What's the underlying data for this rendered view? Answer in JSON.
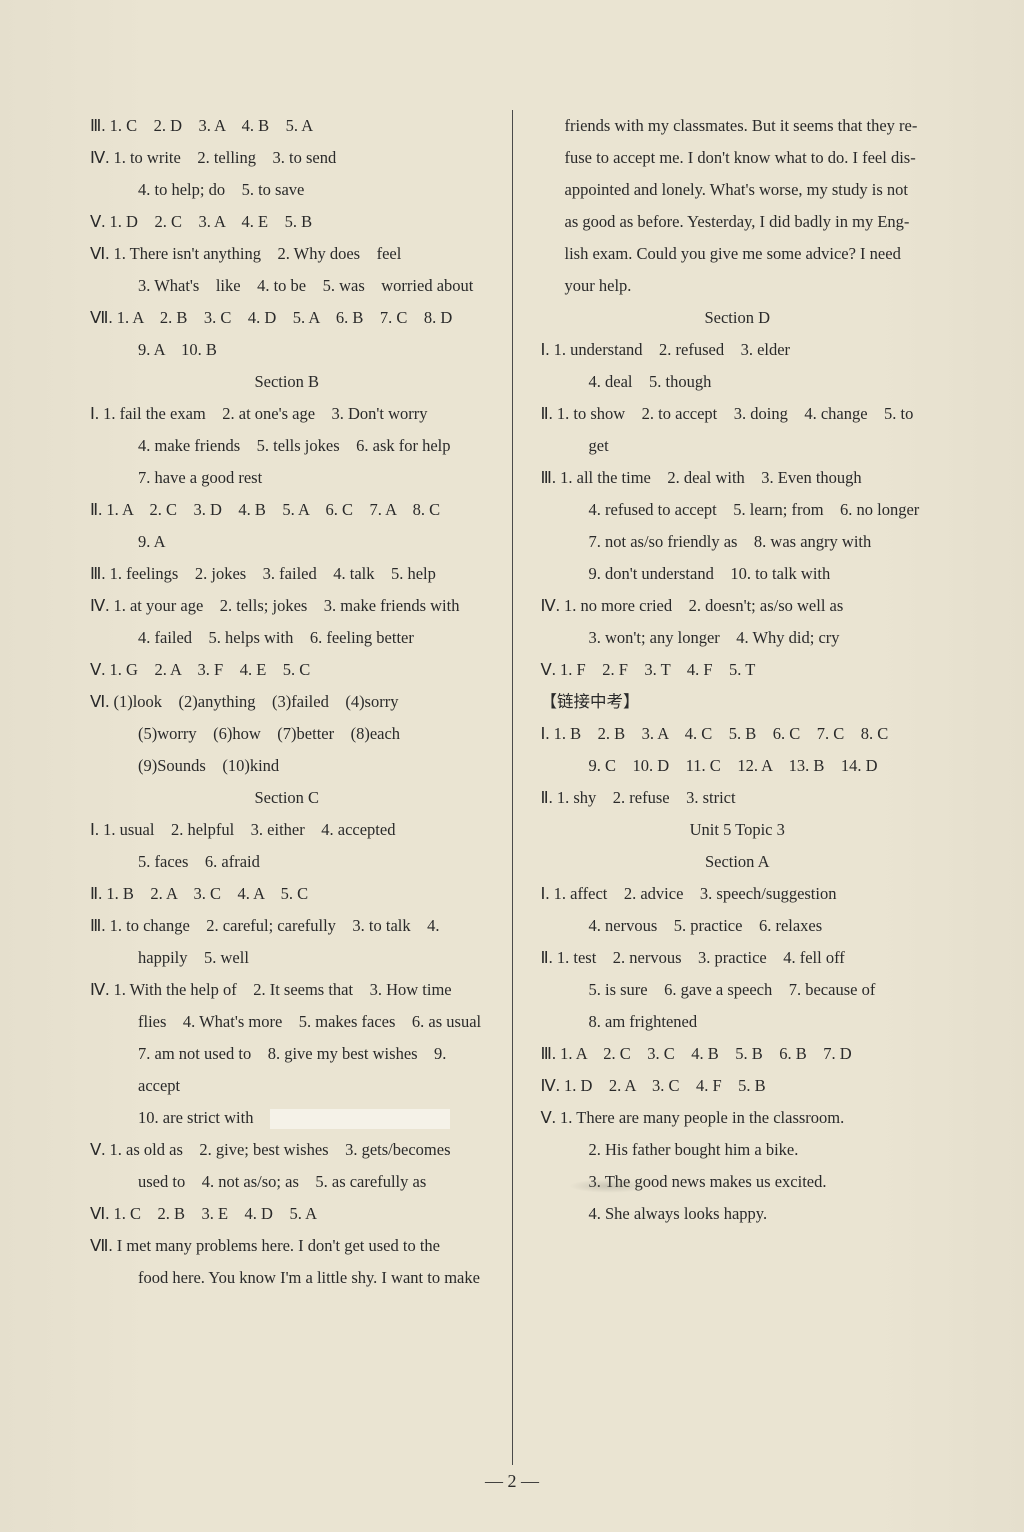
{
  "background_color": "#e8e2d0",
  "text_color": "#2a2a2a",
  "font_family": "Times New Roman",
  "body_fontsize": 16.5,
  "line_height": 32,
  "left": {
    "lines": [
      {
        "t": "Ⅲ. 1. C　2. D　3. A　4. B　5. A"
      },
      {
        "t": "Ⅳ. 1. to write　2. telling　3. to send"
      },
      {
        "t": "4. to help; do　5. to save",
        "cls": "indent"
      },
      {
        "t": "Ⅴ. 1. D　2. C　3. A　4. E　5. B"
      },
      {
        "t": "Ⅵ. 1. There isn't anything　2. Why does　feel"
      },
      {
        "t": "3. What's　like　4. to be　5. was　worried about",
        "cls": "indent"
      },
      {
        "t": "Ⅶ. 1. A　2. B　3. C　4. D　5. A　6. B　7. C　8. D"
      },
      {
        "t": "9. A　10. B",
        "cls": "indent"
      },
      {
        "t": ""
      },
      {
        "t": "Section B",
        "cls": "center"
      },
      {
        "t": "Ⅰ. 1. fail the exam　2. at one's age　3. Don't worry"
      },
      {
        "t": "4. make friends　5. tells jokes　6. ask for help",
        "cls": "indent"
      },
      {
        "t": "7. have a good rest",
        "cls": "indent"
      },
      {
        "t": "Ⅱ. 1. A　2. C　3. D　4. B　5. A　6. C　7. A　8. C"
      },
      {
        "t": "9. A",
        "cls": "indent"
      },
      {
        "t": "Ⅲ. 1. feelings　2. jokes　3. failed　4. talk　5. help"
      },
      {
        "t": "Ⅳ. 1. at your age　2. tells; jokes　3. make friends with"
      },
      {
        "t": "4. failed　5. helps with　6. feeling better",
        "cls": "indent"
      },
      {
        "t": "Ⅴ. 1. G　2. A　3. F　4. E　5. C"
      },
      {
        "t": "Ⅵ. (1)look　(2)anything　(3)failed　(4)sorry"
      },
      {
        "t": "(5)worry　(6)how　(7)better　(8)each",
        "cls": "indent"
      },
      {
        "t": "(9)Sounds　(10)kind",
        "cls": "indent"
      },
      {
        "t": ""
      },
      {
        "t": "Section C",
        "cls": "center"
      },
      {
        "t": "Ⅰ. 1. usual　2. helpful　3. either　4. accepted"
      },
      {
        "t": "5. faces　6. afraid",
        "cls": "indent"
      },
      {
        "t": "Ⅱ. 1. B　2. A　3. C　4. A　5. C"
      },
      {
        "t": "Ⅲ. 1. to change　2. careful; carefully　3. to talk　4."
      },
      {
        "t": "happily　5. well",
        "cls": "indent"
      },
      {
        "t": "Ⅳ. 1. With the help of　2. It seems that　3. How time"
      },
      {
        "t": "flies　4. What's more　5. makes faces　6. as usual",
        "cls": "indent"
      },
      {
        "t": "7. am not used to　8. give my best wishes　9. accept",
        "cls": "indent"
      },
      {
        "t": "10. are strict with",
        "cls": "indent",
        "box": true
      },
      {
        "t": "Ⅴ. 1. as old as　2. give; best wishes　3. gets/becomes"
      },
      {
        "t": "used to　4. not as/so; as　5. as carefully as",
        "cls": "indent"
      },
      {
        "t": "Ⅵ. 1. C　2. B　3. E　4. D　5. A"
      },
      {
        "t": "Ⅶ. I met many problems here. I don't get used to the"
      },
      {
        "t": "food here. You know I'm a little shy. I want to make",
        "cls": "indent"
      }
    ]
  },
  "right": {
    "lines": [
      {
        "t": "friends with my classmates. But it seems that they re-",
        "cls": "justify"
      },
      {
        "t": "fuse to accept me. I don't know what to do. I feel dis-",
        "cls": "justify"
      },
      {
        "t": "appointed and lonely. What's worse, my study is not",
        "cls": "justify"
      },
      {
        "t": "as good as before. Yesterday, I did badly in my Eng-",
        "cls": "justify"
      },
      {
        "t": "lish exam. Could you give me some advice? I need",
        "cls": "justify"
      },
      {
        "t": "your help.",
        "cls": "justify"
      },
      {
        "t": ""
      },
      {
        "t": "Section D",
        "cls": "center"
      },
      {
        "t": "Ⅰ. 1. understand　2. refused　3. elder"
      },
      {
        "t": "4. deal　5. though",
        "cls": "indent"
      },
      {
        "t": "Ⅱ. 1. to show　2. to accept　3. doing　4. change　5. to"
      },
      {
        "t": "get",
        "cls": "indent"
      },
      {
        "t": "Ⅲ. 1. all the time　2. deal with　3. Even though"
      },
      {
        "t": "4. refused to accept　5. learn; from　6. no longer",
        "cls": "indent"
      },
      {
        "t": "7. not as/so friendly as　8. was angry with",
        "cls": "indent"
      },
      {
        "t": "9. don't understand　10. to talk with",
        "cls": "indent"
      },
      {
        "t": "Ⅳ. 1. no more cried　2. doesn't; as/so well as"
      },
      {
        "t": "3. won't; any longer　4. Why did; cry",
        "cls": "indent"
      },
      {
        "t": "Ⅴ. 1. F　2. F　3. T　4. F　5. T"
      },
      {
        "t": "【链接中考】"
      },
      {
        "t": "Ⅰ. 1. B　2. B　3. A　4. C　5. B　6. C　7. C　8. C"
      },
      {
        "t": "9. C　10. D　11. C　12. A　13. B　14. D",
        "cls": "indent"
      },
      {
        "t": "Ⅱ. 1. shy　2. refuse　3. strict"
      },
      {
        "t": ""
      },
      {
        "t": "Unit 5 Topic 3",
        "cls": "center"
      },
      {
        "t": "Section A",
        "cls": "center"
      },
      {
        "t": "Ⅰ. 1. affect　2. advice　3. speech/suggestion"
      },
      {
        "t": "4. nervous　5. practice　6. relaxes",
        "cls": "indent"
      },
      {
        "t": "Ⅱ. 1. test　2. nervous　3. practice　4. fell off"
      },
      {
        "t": "5. is sure　6. gave a speech　7. because of",
        "cls": "indent"
      },
      {
        "t": "8. am frightened",
        "cls": "indent"
      },
      {
        "t": "Ⅲ. 1. A　2. C　3. C　4. B　5. B　6. B　7. D"
      },
      {
        "t": "Ⅳ. 1. D　2. A　3. C　4. F　5. B"
      },
      {
        "t": "Ⅴ. 1. There are many people in the classroom."
      },
      {
        "t": "2. His father bought him a bike.",
        "cls": "indent"
      },
      {
        "t": "3. The good news makes us excited.",
        "cls": "indent",
        "smudge": true
      },
      {
        "t": "4. She always looks happy.",
        "cls": "indent"
      }
    ]
  },
  "pagenum": "— 2 —"
}
